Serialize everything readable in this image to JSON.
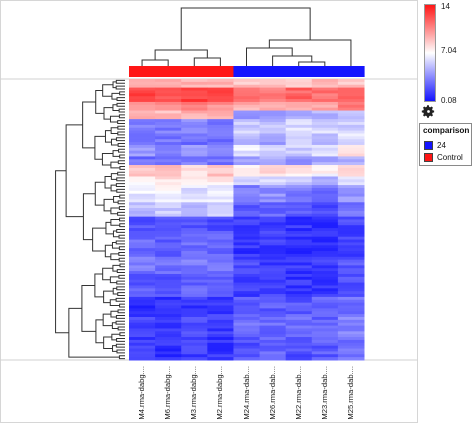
{
  "chart_data": {
    "type": "heatmap",
    "columns": [
      "M4.rma-dabg....",
      "M6.rma-dabg....",
      "M3.rma-dabg....",
      "M2.rma-dabg....",
      "M24.rma-dab....",
      "M26.rma-dab....",
      "M22.rma-dab....",
      "M23.rma-dab....",
      "M25.rma-dab...."
    ],
    "column_groups": [
      "Control",
      "Control",
      "Control",
      "Control",
      "24",
      "24",
      "24",
      "24",
      "24"
    ],
    "color_scale": {
      "max": 14,
      "mid": 7.04,
      "min": 0.08,
      "max_label": "14",
      "mid_label": "7.04",
      "min_label": "0.08",
      "high_color": "#ff1616",
      "mid_color": "#ffffff",
      "low_color": "#1414ff"
    },
    "row_blocks": [
      {
        "rows": 3,
        "values": [
          9.5,
          9.6,
          9.4,
          9.5,
          8.8,
          8.6,
          8.9,
          9.0,
          8.7
        ]
      },
      {
        "rows": 5,
        "values": [
          12.6,
          12.4,
          12.8,
          12.5,
          11.4,
          11.0,
          11.6,
          11.2,
          12.0
        ]
      },
      {
        "rows": 3,
        "values": [
          10.6,
          10.4,
          10.8,
          10.2,
          9.4,
          9.0,
          9.3,
          9.6,
          10.8
        ]
      },
      {
        "rows": 3,
        "values": [
          9.2,
          9.0,
          9.4,
          9.1,
          4.2,
          4.5,
          4.8,
          5.0,
          5.2
        ]
      },
      {
        "rows": 5,
        "values": [
          3.4,
          3.2,
          3.6,
          3.3,
          5.6,
          5.2,
          6.0,
          5.8,
          5.5
        ]
      },
      {
        "rows": 4,
        "values": [
          2.8,
          3.0,
          2.6,
          2.9,
          4.8,
          4.4,
          5.2,
          4.6,
          6.2
        ]
      },
      {
        "rows": 4,
        "values": [
          4.0,
          3.6,
          4.2,
          3.8,
          6.4,
          6.0,
          5.6,
          6.2,
          7.8
        ]
      },
      {
        "rows": 3,
        "values": [
          2.8,
          2.6,
          3.0,
          2.7,
          4.2,
          4.6,
          4.0,
          4.4,
          4.8
        ]
      },
      {
        "rows": 4,
        "values": [
          8.6,
          9.0,
          8.2,
          8.8,
          7.8,
          8.0,
          7.6,
          7.2,
          8.4
        ]
      },
      {
        "rows": 3,
        "values": [
          7.6,
          7.8,
          7.4,
          7.9,
          5.8,
          6.2,
          5.6,
          4.8,
          6.4
        ]
      },
      {
        "rows": 6,
        "values": [
          6.4,
          6.8,
          6.2,
          6.6,
          3.4,
          3.8,
          3.2,
          2.8,
          4.0
        ]
      },
      {
        "rows": 5,
        "values": [
          5.2,
          5.6,
          5.0,
          5.4,
          2.2,
          2.6,
          2.0,
          1.8,
          2.8
        ]
      },
      {
        "rows": 6,
        "values": [
          2.0,
          1.8,
          2.2,
          1.9,
          1.2,
          1.4,
          1.0,
          1.1,
          1.6
        ]
      },
      {
        "rows": 8,
        "values": [
          2.6,
          2.4,
          2.8,
          2.5,
          1.0,
          1.2,
          0.9,
          0.8,
          1.4
        ]
      },
      {
        "rows": 6,
        "values": [
          3.0,
          2.8,
          3.2,
          2.9,
          1.6,
          1.4,
          1.2,
          1.3,
          2.0
        ]
      },
      {
        "rows": 8,
        "values": [
          2.2,
          2.0,
          2.4,
          2.1,
          1.3,
          1.5,
          1.1,
          1.2,
          1.8
        ]
      },
      {
        "rows": 6,
        "values": [
          1.0,
          0.9,
          1.2,
          1.0,
          2.4,
          2.2,
          2.0,
          2.6,
          2.8
        ]
      },
      {
        "rows": 8,
        "values": [
          1.4,
          1.2,
          1.6,
          1.3,
          2.8,
          2.6,
          3.0,
          2.4,
          3.4
        ]
      },
      {
        "rows": 8,
        "values": [
          1.2,
          1.0,
          1.4,
          1.1,
          2.0,
          2.4,
          1.8,
          2.2,
          3.0
        ]
      }
    ]
  },
  "legend": {
    "title": "comparison",
    "items": [
      {
        "label": "24",
        "color": "#1414ff"
      },
      {
        "label": "Control",
        "color": "#ff1616"
      }
    ]
  },
  "icons": {
    "settings": "gear-icon"
  }
}
